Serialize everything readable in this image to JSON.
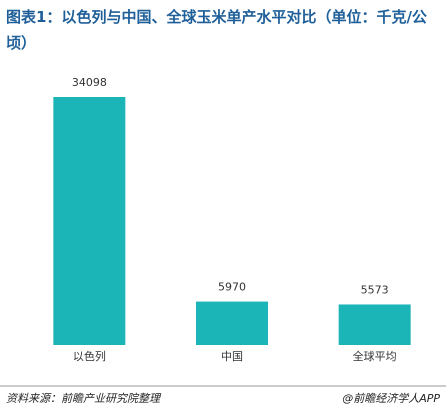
{
  "chart_data": {
    "type": "bar",
    "title": "图表1：以色列与中国、全球玉米单产水平对比（单位：千克/公顷）",
    "categories": [
      "以色列",
      "中国",
      "全球平均"
    ],
    "values": [
      34098,
      5970,
      5573
    ],
    "color": "#1bb5b8",
    "source": "资料来源：前瞻产业研究院整理",
    "credit": "@前瞻经济学人APP"
  }
}
